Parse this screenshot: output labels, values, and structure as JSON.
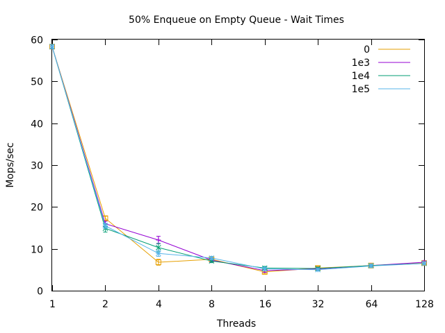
{
  "chart_data": {
    "type": "line",
    "title": "50% Enqueue on Empty Queue - Wait Times",
    "xlabel": "Threads",
    "ylabel": "Mops/sec",
    "x_scale": "log2",
    "x": [
      1,
      2,
      4,
      8,
      16,
      32,
      64,
      128
    ],
    "xticks": [
      "1",
      "2",
      "4",
      "8",
      "16",
      "32",
      "64",
      "128"
    ],
    "ylim": [
      0,
      60
    ],
    "yticks": [
      0,
      10,
      20,
      30,
      40,
      50,
      60
    ],
    "grid": false,
    "legend_position": "top-right",
    "series": [
      {
        "name": "0",
        "color": "#e69f00",
        "marker": "open-square",
        "values": [
          58.3,
          17.3,
          6.8,
          7.5,
          4.5,
          5.4,
          6.0,
          6.6
        ],
        "err": [
          0.5,
          0.5,
          0.7,
          0.4,
          0.4,
          0.4,
          0.3,
          0.3
        ]
      },
      {
        "name": "1e3",
        "color": "#9400d3",
        "marker": "plus",
        "values": [
          58.3,
          16.0,
          12.1,
          7.3,
          4.8,
          5.2,
          6.0,
          6.8
        ],
        "err": [
          0.5,
          0.6,
          0.9,
          0.4,
          0.4,
          0.3,
          0.3,
          0.3
        ]
      },
      {
        "name": "1e4",
        "color": "#009e73",
        "marker": "cross",
        "values": [
          58.3,
          14.9,
          10.3,
          7.1,
          5.4,
          5.3,
          6.0,
          6.5
        ],
        "err": [
          0.5,
          0.9,
          1.0,
          0.4,
          0.4,
          0.3,
          0.3,
          0.3
        ]
      },
      {
        "name": "1e5",
        "color": "#56b4e9",
        "marker": "star",
        "values": [
          58.3,
          15.5,
          8.9,
          7.8,
          5.2,
          5.0,
          5.9,
          6.5
        ],
        "err": [
          0.5,
          0.6,
          0.7,
          0.4,
          0.4,
          0.3,
          0.3,
          0.3
        ]
      }
    ]
  }
}
